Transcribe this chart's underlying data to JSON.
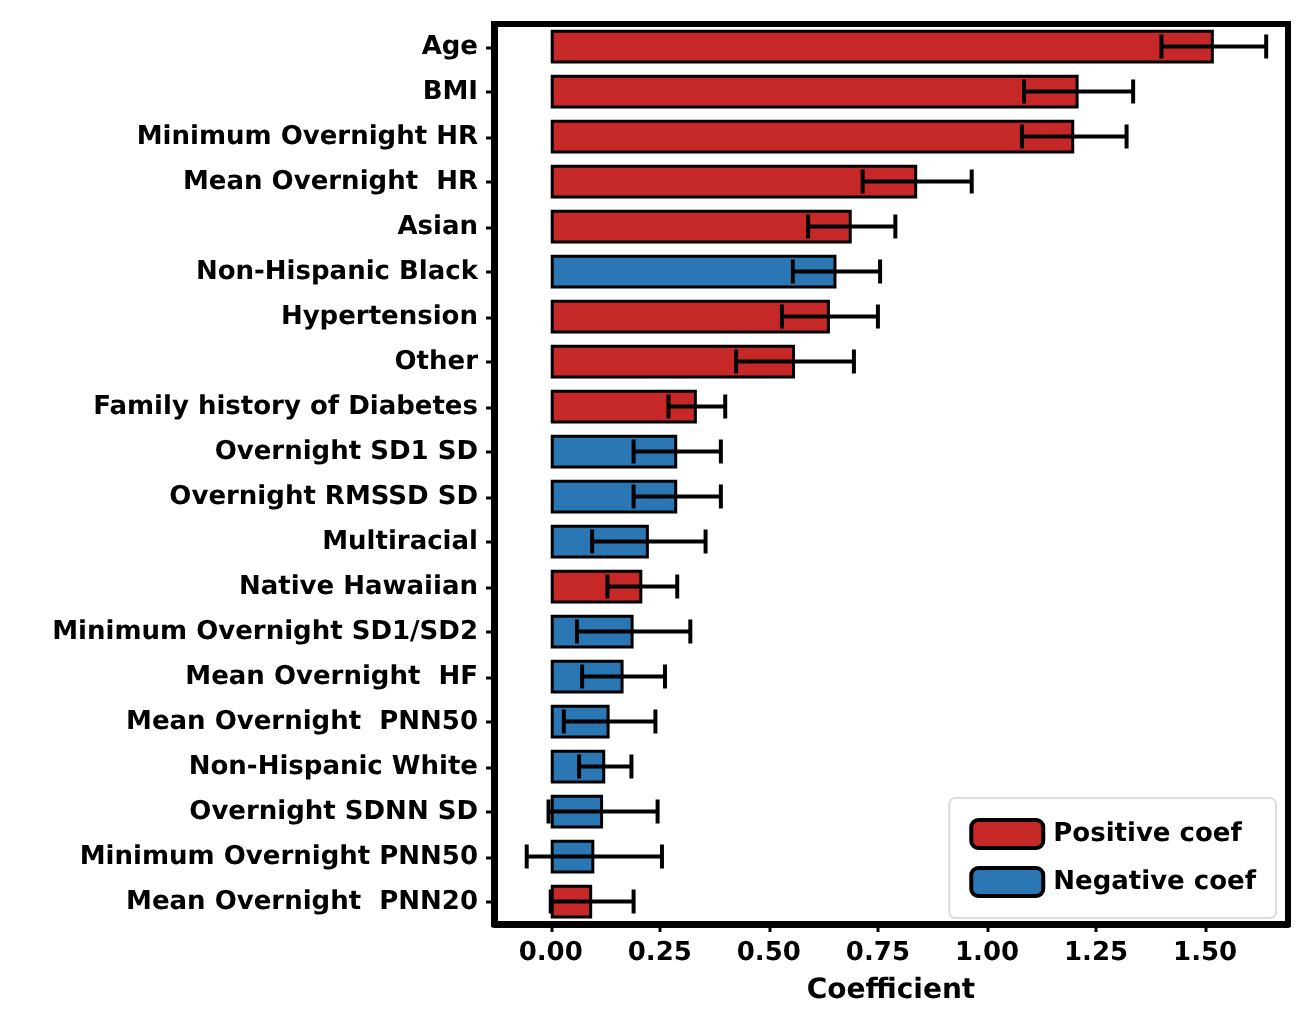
{
  "chart_data": {
    "type": "bar",
    "orientation": "horizontal",
    "xlabel": "Coefficient",
    "categories": [
      "Age",
      "BMI",
      "Minimum Overnight HR",
      "Mean Overnight  HR",
      "Asian",
      "Non-Hispanic Black",
      "Hypertension",
      "Other",
      "Family history of Diabetes",
      "Overnight SD1 SD",
      "Overnight RMSSD SD",
      "Multiracial",
      "Native Hawaiian",
      "Minimum Overnight SD1/SD2",
      "Mean Overnight  HF",
      "Mean Overnight  PNN50",
      "Non-Hispanic White",
      "Overnight SDNN SD",
      "Minimum Overnight PNN50",
      "Mean Overnight  PNN20"
    ],
    "series": [
      {
        "name": "Positive coef",
        "color": "#c62828",
        "values": [
          1.52,
          1.21,
          1.2,
          0.84,
          0.69,
          null,
          0.64,
          0.56,
          0.335,
          null,
          null,
          null,
          0.21,
          null,
          null,
          null,
          null,
          null,
          null,
          0.095
        ],
        "errors": [
          0.12,
          0.125,
          0.12,
          0.125,
          0.1,
          null,
          0.11,
          0.135,
          0.065,
          null,
          null,
          null,
          0.08,
          null,
          null,
          null,
          null,
          null,
          null,
          0.095
        ]
      },
      {
        "name": "Negative coef",
        "color": "#2a77b4",
        "values": [
          null,
          null,
          null,
          null,
          null,
          0.655,
          null,
          null,
          null,
          0.29,
          0.29,
          0.225,
          null,
          0.19,
          0.167,
          0.135,
          0.125,
          0.12,
          0.1,
          null
        ],
        "errors": [
          null,
          null,
          null,
          null,
          null,
          0.1,
          null,
          null,
          null,
          0.1,
          0.1,
          0.13,
          null,
          0.13,
          0.095,
          0.105,
          0.06,
          0.125,
          0.155,
          null
        ]
      }
    ],
    "xlim": [
      -0.13,
      1.69
    ],
    "xticks": [
      {
        "value": 0,
        "label": "0.00"
      },
      {
        "value": 0.25,
        "label": "0.25"
      },
      {
        "value": 0.5,
        "label": "0.50"
      },
      {
        "value": 0.75,
        "label": "0.75"
      },
      {
        "value": 1,
        "label": "1.00"
      },
      {
        "value": 1.25,
        "label": "1.25"
      },
      {
        "value": 1.5,
        "label": "1.50"
      }
    ],
    "grid": false,
    "legend": "bottom right"
  }
}
